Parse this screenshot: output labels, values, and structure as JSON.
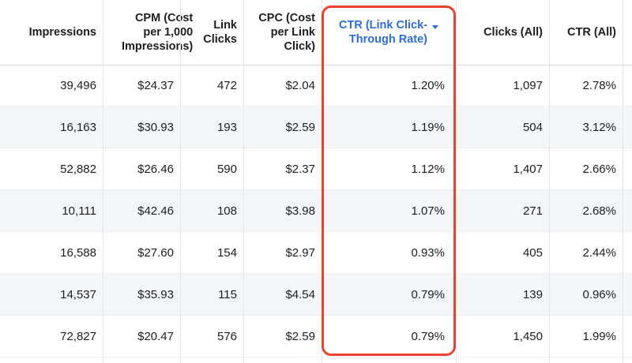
{
  "columns": [
    {
      "key": "impressions",
      "label": "Impressions"
    },
    {
      "key": "cpm",
      "label": "CPM (Cost\nper 1,000\nImpressions)"
    },
    {
      "key": "link_clicks",
      "label": "Link\nClicks"
    },
    {
      "key": "cpc",
      "label": "CPC (Cost\nper Link\nClick)"
    },
    {
      "key": "ctr_link",
      "label": "CTR (Link Click-\nThrough Rate)",
      "sorted": "descending"
    },
    {
      "key": "clicks_all",
      "label": "Clicks (All)"
    },
    {
      "key": "ctr_all",
      "label": "CTR (All)"
    }
  ],
  "rows": [
    [
      "39,496",
      "$24.37",
      "472",
      "$2.04",
      "1.20%",
      "1,097",
      "2.78%"
    ],
    [
      "16,163",
      "$30.93",
      "193",
      "$2.59",
      "1.19%",
      "504",
      "3.12%"
    ],
    [
      "52,882",
      "$26.46",
      "590",
      "$2.37",
      "1.12%",
      "1,407",
      "2.66%"
    ],
    [
      "10,111",
      "$42.46",
      "108",
      "$3.98",
      "1.07%",
      "271",
      "2.68%"
    ],
    [
      "16,588",
      "$27.60",
      "154",
      "$2.97",
      "0.93%",
      "405",
      "2.44%"
    ],
    [
      "14,537",
      "$35.93",
      "115",
      "$4.54",
      "0.79%",
      "139",
      "0.96%"
    ],
    [
      "72,827",
      "$20.47",
      "576",
      "$2.59",
      "0.79%",
      "1,450",
      "1.99%"
    ]
  ],
  "colors": {
    "sorted_header": "#2d6cdf",
    "highlight_box": "#e8432f",
    "alt_row": "#f4f6f7"
  }
}
